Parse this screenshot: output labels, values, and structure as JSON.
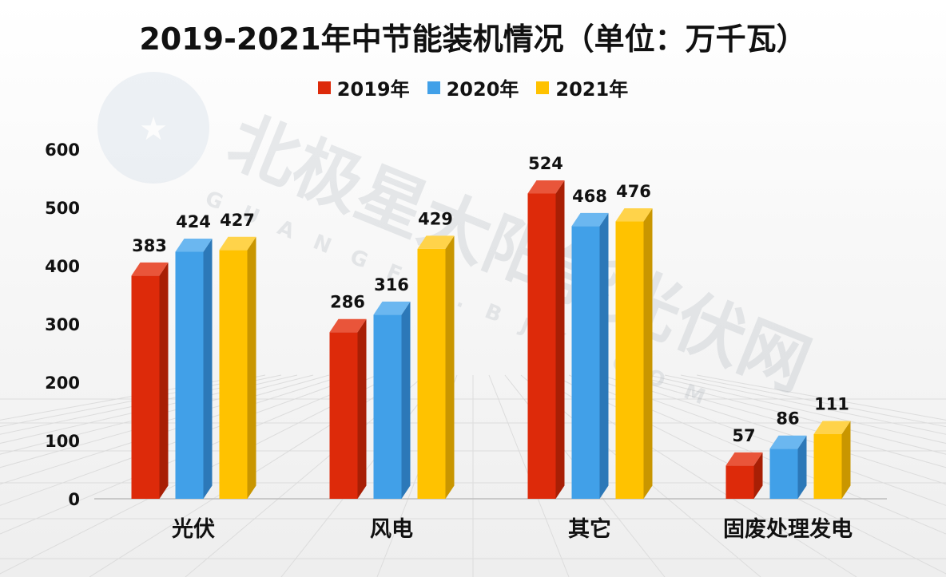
{
  "chart_data": {
    "type": "bar",
    "title": "2019-2021年中节能装机情况（单位：万千瓦）",
    "categories": [
      "光伏",
      "风电",
      "其它",
      "固废处理发电"
    ],
    "series": [
      {
        "name": "2019年",
        "values": [
          383,
          286,
          524,
          57
        ],
        "color": "#DD2A0A",
        "dark": "#A81F05",
        "top": "#E9553A"
      },
      {
        "name": "2020年",
        "values": [
          424,
          316,
          468,
          86
        ],
        "color": "#41A0E8",
        "dark": "#2C78B8",
        "top": "#6BB7F0"
      },
      {
        "name": "2021年",
        "values": [
          427,
          429,
          476,
          111
        ],
        "color": "#FFC200",
        "dark": "#C99600",
        "top": "#FFD34A"
      }
    ],
    "ylim": [
      0,
      600
    ],
    "yticks": [
      0,
      100,
      200,
      300,
      400,
      500,
      600
    ],
    "legend_position": "top",
    "grid": false
  },
  "watermark": {
    "main_text": "北极星太阳能光伏网",
    "sub_text": "GUANGFU.BJX.COM"
  }
}
